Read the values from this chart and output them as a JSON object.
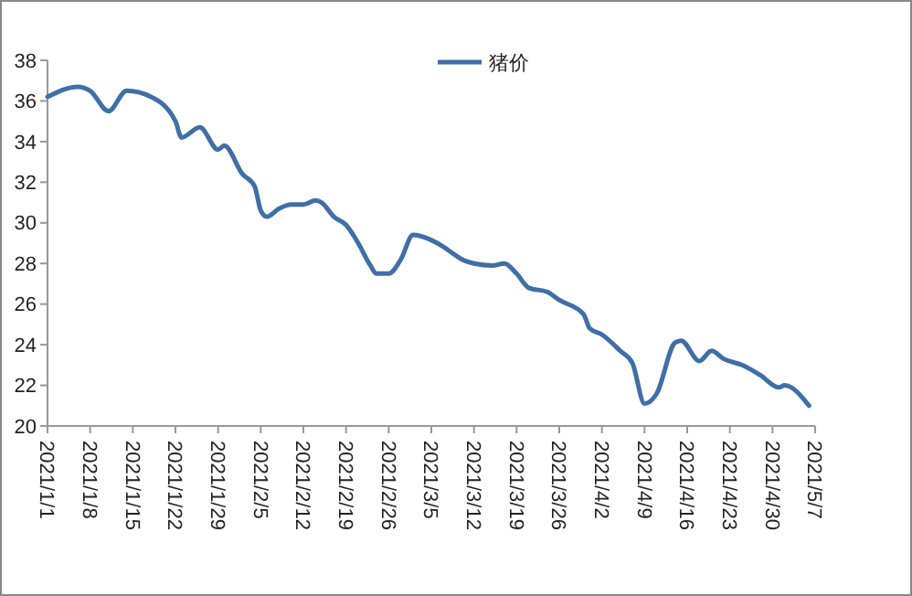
{
  "chart_data": {
    "type": "line",
    "legend": "top",
    "grid": false,
    "marker": "none",
    "line_style": "solid",
    "x": [
      "2021-01-01",
      "2021-01-06",
      "2021-01-08",
      "2021-01-11",
      "2021-01-14",
      "2021-01-18",
      "2021-01-22",
      "2021-01-23",
      "2021-01-26",
      "2021-01-29",
      "2021-01-30",
      "2021-02-02",
      "2021-02-04",
      "2021-02-05",
      "2021-02-06",
      "2021-02-08",
      "2021-02-10",
      "2021-02-12",
      "2021-02-14",
      "2021-02-15",
      "2021-02-17",
      "2021-02-19",
      "2021-02-21",
      "2021-02-23",
      "2021-02-24",
      "2021-02-26",
      "2021-02-28",
      "2021-03-02",
      "2021-03-06",
      "2021-03-09",
      "2021-03-10",
      "2021-03-12",
      "2021-03-15",
      "2021-03-17",
      "2021-03-19",
      "2021-03-21",
      "2021-03-24",
      "2021-03-26",
      "2021-03-30",
      "2021-03-31",
      "2021-04-02",
      "2021-04-05",
      "2021-04-07",
      "2021-04-09",
      "2021-04-11",
      "2021-04-14",
      "2021-04-15",
      "2021-04-18",
      "2021-04-20",
      "2021-04-22",
      "2021-04-25",
      "2021-04-28",
      "2021-05-01",
      "2021-05-02",
      "2021-05-06"
    ],
    "series": [
      {
        "name": "猪价",
        "color": "#3f6fa6",
        "values": [
          36.2,
          36.7,
          36.5,
          35.5,
          36.5,
          36.2,
          35.0,
          34.2,
          34.7,
          33.6,
          33.8,
          32.4,
          31.8,
          30.6,
          30.3,
          30.7,
          30.9,
          30.9,
          31.1,
          31.0,
          30.3,
          29.9,
          29.0,
          27.9,
          27.5,
          27.5,
          28.2,
          29.4,
          29.0,
          28.4,
          28.2,
          28.0,
          27.9,
          28.0,
          27.5,
          26.8,
          26.6,
          26.2,
          25.5,
          24.8,
          24.5,
          23.7,
          23.1,
          21.1,
          21.6,
          24.1,
          24.2,
          23.2,
          23.7,
          23.3,
          23.0,
          22.5,
          21.9,
          22.0,
          21.0
        ]
      }
    ],
    "xlim": [
      "2021-01-01",
      "2021-05-07"
    ],
    "xticks": [
      {
        "value": "2021-01-01",
        "label": "2021/1/1"
      },
      {
        "value": "2021-01-08",
        "label": "2021/1/8"
      },
      {
        "value": "2021-01-15",
        "label": "2021/1/15"
      },
      {
        "value": "2021-01-22",
        "label": "2021/1/22"
      },
      {
        "value": "2021-01-29",
        "label": "2021/1/29"
      },
      {
        "value": "2021-02-05",
        "label": "2021/2/5"
      },
      {
        "value": "2021-02-12",
        "label": "2021/2/12"
      },
      {
        "value": "2021-02-19",
        "label": "2021/2/19"
      },
      {
        "value": "2021-02-26",
        "label": "2021/2/26"
      },
      {
        "value": "2021-03-05",
        "label": "2021/3/5"
      },
      {
        "value": "2021-03-12",
        "label": "2021/3/12"
      },
      {
        "value": "2021-03-19",
        "label": "2021/3/19"
      },
      {
        "value": "2021-03-26",
        "label": "2021/3/26"
      },
      {
        "value": "2021-04-02",
        "label": "2021/4/2"
      },
      {
        "value": "2021-04-09",
        "label": "2021/4/9"
      },
      {
        "value": "2021-04-16",
        "label": "2021/4/16"
      },
      {
        "value": "2021-04-23",
        "label": "2021/4/23"
      },
      {
        "value": "2021-04-30",
        "label": "2021/4/30"
      },
      {
        "value": "2021-05-07",
        "label": "2021/5/7"
      }
    ],
    "ylim": [
      20,
      38
    ],
    "yticks": [
      20,
      22,
      24,
      26,
      28,
      30,
      32,
      34,
      36,
      38
    ]
  }
}
